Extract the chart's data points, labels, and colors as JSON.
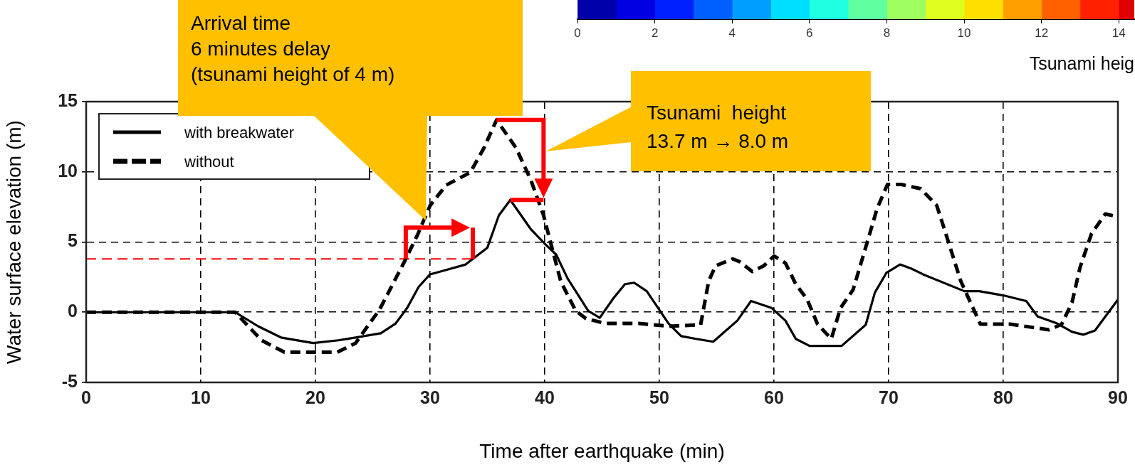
{
  "chart_data": [
    {
      "type": "line",
      "xlabel": "Time after earthquake (min)",
      "ylabel": "Water surface elevation (m)",
      "xlim": [
        0,
        90
      ],
      "xticks": [
        0,
        10,
        20,
        30,
        40,
        50,
        60,
        70,
        80,
        90
      ],
      "ylim": [
        -5,
        15
      ],
      "yticks": [
        -5,
        0,
        5,
        10,
        15
      ],
      "grid": true,
      "legend": "top left",
      "marker": "none",
      "series": [
        {
          "name": "with breakwater",
          "color": "#000000",
          "line_style": "solid",
          "x": [
            0,
            13,
            15,
            17,
            19.8,
            22,
            23.5,
            25.7,
            27,
            28,
            29,
            30,
            31.8,
            33.1,
            35,
            36,
            37,
            38.8,
            40.1,
            41,
            42,
            43.8,
            44.8,
            46,
            47,
            47.8,
            48.9,
            50.8,
            51.9,
            53.2,
            54.7,
            56.8,
            58,
            59.8,
            61,
            61.9,
            63.1,
            65.9,
            68,
            68.8,
            69.8,
            71,
            72,
            73,
            76.6,
            77.9,
            80,
            82,
            83,
            84.7,
            86,
            87,
            88,
            90
          ],
          "values": [
            0,
            0,
            -1.0,
            -1.8,
            -2.2,
            -2.0,
            -1.8,
            -1.5,
            -0.8,
            0.3,
            1.8,
            2.7,
            3.1,
            3.4,
            4.6,
            6.9,
            8.0,
            5.9,
            4.8,
            4.1,
            2.4,
            0.1,
            -0.4,
            1.0,
            2.0,
            2.1,
            1.5,
            -0.8,
            -1.7,
            -1.9,
            -2.1,
            -0.6,
            0.8,
            0.3,
            -0.6,
            -1.9,
            -2.4,
            -2.4,
            -0.9,
            1.4,
            2.8,
            3.4,
            3.1,
            2.7,
            1.5,
            1.5,
            1.2,
            0.8,
            -0.3,
            -0.8,
            -1.4,
            -1.6,
            -1.3,
            0.9
          ]
        },
        {
          "name": "without",
          "color": "#000000",
          "line_style": "dashed",
          "x": [
            0,
            13,
            15.3,
            17.3,
            21.9,
            23.5,
            25.6,
            27.7,
            28.9,
            30,
            31.4,
            33.5,
            34.7,
            35.8,
            37.5,
            38.8,
            39.9,
            40.5,
            41.4,
            42.7,
            43.6,
            45.3,
            48.2,
            50.8,
            53.6,
            54.3,
            54.9,
            56.4,
            57,
            58.1,
            59.1,
            60,
            61,
            61.9,
            62.9,
            63.8,
            65,
            65.8,
            66.9,
            68.1,
            69,
            69.9,
            71.1,
            72.8,
            74.2,
            75.1,
            76.3,
            78,
            80.6,
            84,
            85.1,
            86,
            86.7,
            87.7,
            88.9,
            90
          ],
          "values": [
            0,
            0,
            -2.0,
            -2.85,
            -2.85,
            -2.2,
            0.2,
            3.5,
            5.5,
            7.6,
            9.05,
            9.95,
            11.7,
            13.7,
            11.7,
            9.4,
            6.9,
            5.0,
            2.2,
            0.1,
            -0.45,
            -0.8,
            -0.8,
            -1.0,
            -0.9,
            2.2,
            3.3,
            3.8,
            3.6,
            2.9,
            3.3,
            4.0,
            3.5,
            2.0,
            0.9,
            -0.85,
            -1.9,
            0.3,
            1.6,
            4.9,
            7.4,
            9.1,
            9.1,
            8.8,
            7.6,
            5.3,
            2.2,
            -0.85,
            -0.85,
            -1.25,
            -0.85,
            0.7,
            3.2,
            5.6,
            7.0,
            6.8
          ]
        }
      ],
      "ref_lines": [
        {
          "axis": "y",
          "value": 3.8,
          "color": "#ff0000",
          "line_style": "dashed"
        }
      ],
      "annotations": [
        "Arrival time\n6 minutes delay\n(tsunami height of 4 m)",
        "Tsunami  height\n13.7 m → 8.0 m"
      ]
    },
    {
      "type": "bar",
      "orientation": "horizontal",
      "stacked": true,
      "categories": [
        null
      ],
      "xlabel": "Tsunami heig",
      "xlim": [
        0,
        14.4
      ],
      "xticks": [
        0,
        2,
        4,
        6,
        8,
        10,
        12,
        14
      ],
      "legend": false,
      "grid": false,
      "series": [
        {
          "color": "#0000ab",
          "values": [
            1
          ]
        },
        {
          "color": "#0000e3",
          "values": [
            1
          ]
        },
        {
          "color": "#0020ff",
          "values": [
            1
          ]
        },
        {
          "color": "#0060ff",
          "values": [
            1
          ]
        },
        {
          "color": "#009fff",
          "values": [
            1
          ]
        },
        {
          "color": "#00dfff",
          "values": [
            1
          ]
        },
        {
          "color": "#20ffdf",
          "values": [
            1
          ]
        },
        {
          "color": "#60ff9f",
          "values": [
            1
          ]
        },
        {
          "color": "#9fff60",
          "values": [
            1
          ]
        },
        {
          "color": "#dfff20",
          "values": [
            1
          ]
        },
        {
          "color": "#ffdf00",
          "values": [
            1
          ]
        },
        {
          "color": "#ff9f00",
          "values": [
            1
          ]
        },
        {
          "color": "#ff6000",
          "values": [
            1
          ]
        },
        {
          "color": "#ff2000",
          "values": [
            1
          ]
        },
        {
          "color": "#df0000",
          "values": [
            0.4
          ]
        }
      ]
    }
  ]
}
